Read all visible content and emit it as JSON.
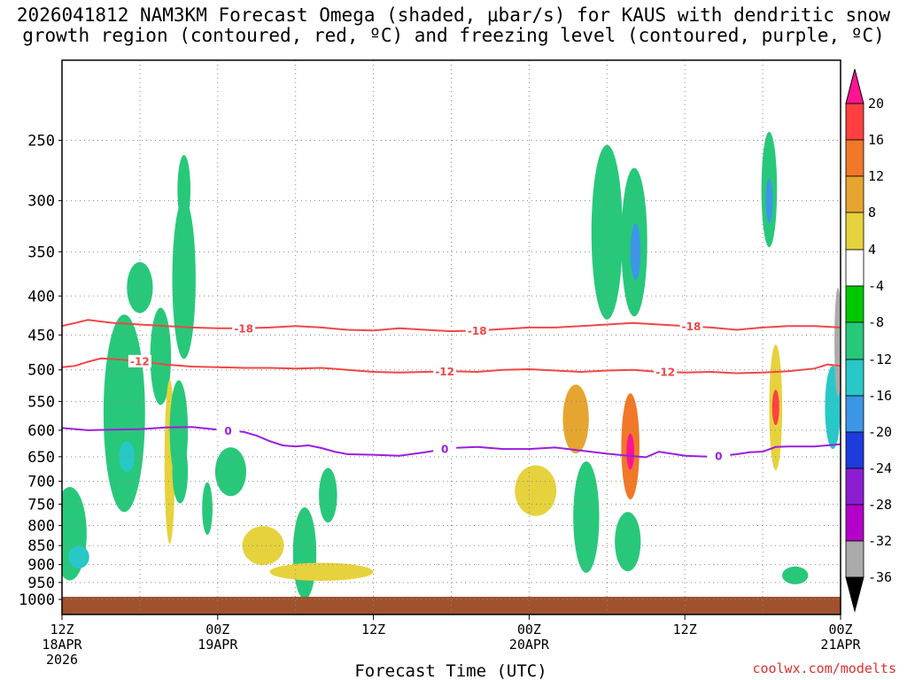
{
  "title_line1": "2026041812 NAM3KM Forecast Omega (shaded, μbar/s) for KAUS with dendritic snow",
  "title_line2": "growth region (contoured, red, ºC) and freezing level (contoured, purple, ºC)",
  "credit": "coolwx.com/modelts",
  "chart_data": {
    "type": "heatmap",
    "title": "2026041812 NAM3KM Forecast Omega (shaded, μbar/s) for KAUS with dendritic snow growth region (contoured, red, ºC) and freezing level (contoured, purple, ºC)",
    "xlabel": "Forecast Time (UTC)",
    "ylabel": "",
    "x_unit": "hours since 2026-04-18 12Z",
    "xlim": [
      0,
      60
    ],
    "ylim_hpa": [
      1000,
      200
    ],
    "y_scale": "log",
    "grid": true,
    "x_ticks": [
      {
        "hour": 0,
        "lines": [
          "12Z",
          "18APR",
          "2026"
        ]
      },
      {
        "hour": 12,
        "lines": [
          "00Z",
          "19APR"
        ]
      },
      {
        "hour": 24,
        "lines": [
          "12Z"
        ]
      },
      {
        "hour": 36,
        "lines": [
          "00Z",
          "20APR"
        ]
      },
      {
        "hour": 48,
        "lines": [
          "12Z"
        ]
      },
      {
        "hour": 60,
        "lines": [
          "00Z",
          "21APR"
        ]
      }
    ],
    "y_ticks": [
      250,
      300,
      350,
      400,
      450,
      500,
      550,
      600,
      650,
      700,
      750,
      800,
      850,
      900,
      950,
      1000
    ],
    "colorbar": {
      "unit": "μbar/s",
      "levels": [
        20,
        16,
        12,
        8,
        4,
        -4,
        -8,
        -12,
        -16,
        -20,
        -24,
        -28,
        -32,
        -36
      ],
      "colors": [
        "#ff1493",
        "#ff4040",
        "#f07828",
        "#e6a530",
        "#e6d23c",
        "#ffffff",
        "#00c800",
        "#28c87a",
        "#28c8c8",
        "#3c96e6",
        "#1e3cdc",
        "#8c1ed2",
        "#b400c8",
        "#aaaaaa",
        "#000000"
      ]
    },
    "contours": [
      {
        "kind": "dendritic",
        "label": "-18",
        "color": "#f04646",
        "points": [
          [
            0,
            438
          ],
          [
            1,
            434
          ],
          [
            2,
            430
          ],
          [
            3,
            432
          ],
          [
            4,
            434
          ],
          [
            6,
            436
          ],
          [
            8,
            438
          ],
          [
            10,
            440
          ],
          [
            12,
            441
          ],
          [
            14,
            441
          ],
          [
            16,
            440
          ],
          [
            18,
            438
          ],
          [
            20,
            440
          ],
          [
            22,
            443
          ],
          [
            24,
            444
          ],
          [
            26,
            441
          ],
          [
            28,
            443
          ],
          [
            30,
            445
          ],
          [
            32,
            444
          ],
          [
            34,
            442
          ],
          [
            36,
            440
          ],
          [
            38,
            440
          ],
          [
            40,
            438
          ],
          [
            42,
            436
          ],
          [
            44,
            434
          ],
          [
            46,
            436
          ],
          [
            48,
            438
          ],
          [
            50,
            440
          ],
          [
            52,
            443
          ],
          [
            54,
            440
          ],
          [
            56,
            438
          ],
          [
            58,
            438
          ],
          [
            60,
            440
          ]
        ],
        "label_hours": [
          14,
          32,
          48.5
        ]
      },
      {
        "kind": "dendritic",
        "label": "-12",
        "color": "#f04646",
        "points": [
          [
            0,
            496
          ],
          [
            1,
            494
          ],
          [
            2,
            488
          ],
          [
            3,
            483
          ],
          [
            4,
            484
          ],
          [
            6,
            487
          ],
          [
            8,
            492
          ],
          [
            10,
            495
          ],
          [
            12,
            496
          ],
          [
            14,
            497
          ],
          [
            16,
            497
          ],
          [
            18,
            498
          ],
          [
            20,
            497
          ],
          [
            22,
            500
          ],
          [
            24,
            503
          ],
          [
            26,
            504
          ],
          [
            28,
            503
          ],
          [
            30,
            502
          ],
          [
            32,
            503
          ],
          [
            34,
            500
          ],
          [
            36,
            499
          ],
          [
            38,
            501
          ],
          [
            40,
            503
          ],
          [
            42,
            501
          ],
          [
            44,
            500
          ],
          [
            46,
            503
          ],
          [
            48,
            504
          ],
          [
            50,
            503
          ],
          [
            52,
            505
          ],
          [
            54,
            504
          ],
          [
            56,
            502
          ],
          [
            58,
            498
          ],
          [
            59,
            492
          ],
          [
            60,
            494
          ]
        ],
        "label_hours": [
          6,
          29.5,
          46.5
        ]
      },
      {
        "kind": "freezing",
        "label": "0",
        "color": "#9b1edc",
        "points": [
          [
            0,
            596
          ],
          [
            2,
            600
          ],
          [
            4,
            599
          ],
          [
            6,
            598
          ],
          [
            8,
            595
          ],
          [
            10,
            594
          ],
          [
            12,
            599
          ],
          [
            14,
            603
          ],
          [
            15,
            610
          ],
          [
            16,
            620
          ],
          [
            17,
            628
          ],
          [
            18,
            630
          ],
          [
            19,
            628
          ],
          [
            20,
            633
          ],
          [
            21,
            640
          ],
          [
            22,
            645
          ],
          [
            24,
            646
          ],
          [
            26,
            648
          ],
          [
            28,
            641
          ],
          [
            30,
            633
          ],
          [
            32,
            631
          ],
          [
            34,
            635
          ],
          [
            36,
            635
          ],
          [
            38,
            632
          ],
          [
            40,
            638
          ],
          [
            42,
            644
          ],
          [
            44,
            649
          ],
          [
            45,
            651
          ],
          [
            46,
            640
          ],
          [
            48,
            648
          ],
          [
            50,
            650
          ],
          [
            52,
            645
          ],
          [
            53,
            641
          ],
          [
            54,
            640
          ],
          [
            55,
            631
          ],
          [
            56,
            630
          ],
          [
            58,
            630
          ],
          [
            60,
            626
          ]
        ],
        "label_hours": [
          12.8,
          29.5,
          50.6
        ]
      }
    ],
    "shaded_regions": [
      {
        "hour": 0.6,
        "hpa": 820,
        "dh": 1.3,
        "dp": 230,
        "value": -10
      },
      {
        "hour": 1.3,
        "hpa": 880,
        "dh": 0.8,
        "dp": 60,
        "value": -14
      },
      {
        "hour": 4.8,
        "hpa": 570,
        "dh": 1.6,
        "dp": 330,
        "value": -9
      },
      {
        "hour": 5.0,
        "hpa": 650,
        "dh": 0.6,
        "dp": 60,
        "value": -14
      },
      {
        "hour": 6.0,
        "hpa": 390,
        "dh": 1.0,
        "dp": 60,
        "value": -9
      },
      {
        "hour": 7.6,
        "hpa": 480,
        "dh": 0.8,
        "dp": 140,
        "value": -9
      },
      {
        "hour": 8.3,
        "hpa": 660,
        "dh": 0.4,
        "dp": 320,
        "value": 6
      },
      {
        "hour": 9.4,
        "hpa": 380,
        "dh": 0.9,
        "dp": 180,
        "value": -9
      },
      {
        "hour": 9.0,
        "hpa": 600,
        "dh": 0.7,
        "dp": 180,
        "value": -9
      },
      {
        "hour": 9.4,
        "hpa": 290,
        "dh": 0.5,
        "dp": 60,
        "value": -9
      },
      {
        "hour": 9.1,
        "hpa": 680,
        "dh": 0.6,
        "dp": 130,
        "value": -9
      },
      {
        "hour": 11.2,
        "hpa": 760,
        "dh": 0.4,
        "dp": 120,
        "value": -9
      },
      {
        "hour": 13.0,
        "hpa": 680,
        "dh": 1.2,
        "dp": 100,
        "value": -10
      },
      {
        "hour": 15.5,
        "hpa": 850,
        "dh": 1.6,
        "dp": 100,
        "value": 7
      },
      {
        "hour": 18.7,
        "hpa": 870,
        "dh": 0.9,
        "dp": 240,
        "value": -9
      },
      {
        "hour": 20.5,
        "hpa": 730,
        "dh": 0.7,
        "dp": 120,
        "value": -9
      },
      {
        "hour": 20.0,
        "hpa": 920,
        "dh": 4.0,
        "dp": 50,
        "value": 5
      },
      {
        "hour": 36.5,
        "hpa": 720,
        "dh": 1.6,
        "dp": 110,
        "value": 4
      },
      {
        "hour": 39.6,
        "hpa": 580,
        "dh": 1.0,
        "dp": 120,
        "value": 8
      },
      {
        "hour": 40.4,
        "hpa": 780,
        "dh": 1.0,
        "dp": 260,
        "value": -9
      },
      {
        "hour": 42.0,
        "hpa": 330,
        "dh": 1.2,
        "dp": 170,
        "value": -9
      },
      {
        "hour": 44.1,
        "hpa": 340,
        "dh": 1.0,
        "dp": 150,
        "value": -10
      },
      {
        "hour": 44.2,
        "hpa": 350,
        "dh": 0.4,
        "dp": 60,
        "value": -20
      },
      {
        "hour": 43.8,
        "hpa": 630,
        "dh": 0.7,
        "dp": 200,
        "value": 13
      },
      {
        "hour": 43.8,
        "hpa": 640,
        "dh": 0.3,
        "dp": 70,
        "value": 20
      },
      {
        "hour": 43.6,
        "hpa": 840,
        "dh": 1.0,
        "dp": 150,
        "value": -9
      },
      {
        "hour": 54.5,
        "hpa": 290,
        "dh": 0.6,
        "dp": 100,
        "value": -9
      },
      {
        "hour": 54.5,
        "hpa": 300,
        "dh": 0.2,
        "dp": 40,
        "value": -20
      },
      {
        "hour": 55.0,
        "hpa": 560,
        "dh": 0.5,
        "dp": 210,
        "value": 7
      },
      {
        "hour": 55.0,
        "hpa": 560,
        "dh": 0.2,
        "dp": 60,
        "value": 16
      },
      {
        "hour": 56.5,
        "hpa": 930,
        "dh": 1.0,
        "dp": 50,
        "value": -11
      },
      {
        "hour": 59.4,
        "hpa": 560,
        "dh": 0.6,
        "dp": 140,
        "value": -16
      },
      {
        "hour": 59.8,
        "hpa": 460,
        "dh": 0.2,
        "dp": 150,
        "value": -36
      }
    ]
  }
}
